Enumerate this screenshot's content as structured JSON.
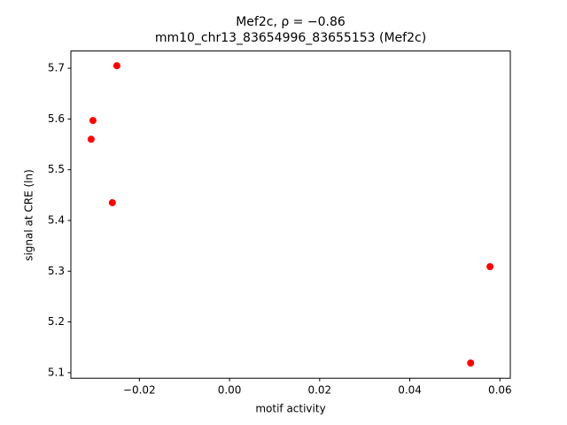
{
  "chart_data": {
    "type": "scatter",
    "title": "Mef2c, ρ = −0.86",
    "subtitle": "mm10_chr13_83654996_83655153 (Mef2c)",
    "x_label": "motif activity",
    "y_label": "signal at CRE (ln)",
    "color": "#ff0000",
    "series": [
      {
        "x": [
          -0.025,
          -0.0303,
          -0.0307,
          -0.026,
          0.0578,
          0.0535
        ],
        "y": [
          5.705,
          5.597,
          5.56,
          5.435,
          5.309,
          5.119
        ]
      }
    ],
    "xlim": [
      -0.0352,
      0.0623
    ],
    "ylim": [
      5.089,
      5.734
    ],
    "xticks": [
      {
        "value": -0.02,
        "label": "−0.02"
      },
      {
        "value": 0,
        "label": "0.00"
      },
      0.02,
      0.04,
      0.06
    ],
    "yticks": [
      5.1,
      5.2,
      5.3,
      5.4,
      5.5,
      5.6,
      5.7
    ]
  }
}
